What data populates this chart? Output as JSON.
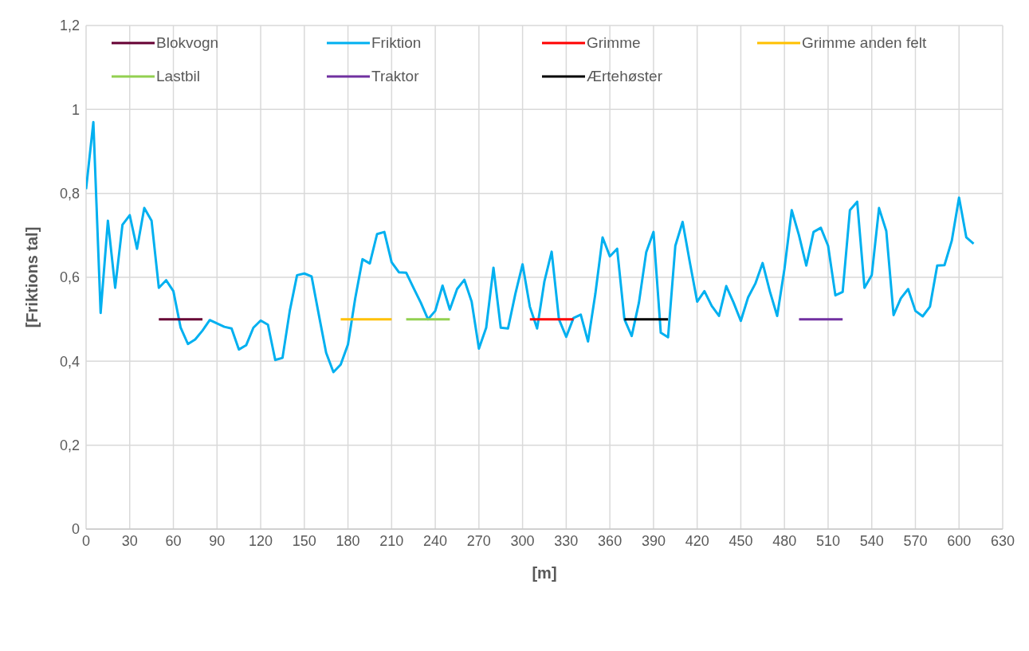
{
  "chart_data": {
    "type": "line",
    "xlabel": "[m]",
    "ylabel": "[Friktions tal]",
    "xlim": [
      0,
      630
    ],
    "xticks": [
      0,
      30,
      60,
      90,
      120,
      150,
      180,
      210,
      240,
      270,
      300,
      330,
      360,
      390,
      420,
      450,
      480,
      510,
      540,
      570,
      600,
      630
    ],
    "ylim": [
      0,
      1.2
    ],
    "yticks": [
      0,
      {
        "value": 0.2,
        "label": "0,2"
      },
      {
        "value": 0.4,
        "label": "0,4"
      },
      {
        "value": 0.6,
        "label": "0,6"
      },
      {
        "value": 0.8,
        "label": "0,8"
      },
      1,
      {
        "value": 1.2,
        "label": "1,2"
      }
    ],
    "grid": true,
    "legend": "top",
    "marker": "none",
    "line_style": "solid",
    "series": [
      {
        "name": "Friktion",
        "color": "#00b0f0",
        "x": [
          0,
          5,
          10,
          15,
          20,
          25,
          30,
          35,
          40,
          45,
          50,
          55,
          60,
          65,
          70,
          75,
          80,
          85,
          90,
          95,
          100,
          105,
          110,
          115,
          120,
          125,
          130,
          135,
          140,
          145,
          150,
          155,
          160,
          165,
          170,
          175,
          180,
          185,
          190,
          195,
          200,
          205,
          210,
          215,
          220,
          225,
          230,
          235,
          240,
          245,
          250,
          255,
          260,
          265,
          270,
          275,
          280,
          285,
          290,
          295,
          300,
          305,
          310,
          315,
          320,
          325,
          330,
          335,
          340,
          345,
          350,
          355,
          360,
          365,
          370,
          375,
          380,
          385,
          390,
          395,
          400,
          405,
          410,
          415,
          420,
          425,
          430,
          435,
          440,
          445,
          450,
          455,
          460,
          465,
          470,
          475,
          480,
          485,
          490,
          495,
          500,
          505,
          510,
          515,
          520,
          525,
          530,
          535,
          540,
          545,
          550,
          555,
          560,
          565,
          570,
          575,
          580,
          585,
          590,
          595,
          600,
          605,
          610
        ],
        "values": [
          0.81,
          0.97,
          0.515,
          0.735,
          0.575,
          0.725,
          0.748,
          0.668,
          0.765,
          0.735,
          0.575,
          0.593,
          0.567,
          0.48,
          0.441,
          0.452,
          0.473,
          0.498,
          0.49,
          0.482,
          0.478,
          0.428,
          0.438,
          0.48,
          0.497,
          0.487,
          0.403,
          0.408,
          0.52,
          0.605,
          0.609,
          0.602,
          0.51,
          0.42,
          0.374,
          0.392,
          0.44,
          0.55,
          0.643,
          0.633,
          0.703,
          0.708,
          0.636,
          0.612,
          0.611,
          0.575,
          0.54,
          0.5,
          0.52,
          0.58,
          0.523,
          0.572,
          0.594,
          0.542,
          0.43,
          0.48,
          0.623,
          0.48,
          0.478,
          0.56,
          0.631,
          0.53,
          0.478,
          0.59,
          0.661,
          0.5,
          0.458,
          0.503,
          0.511,
          0.447,
          0.56,
          0.695,
          0.65,
          0.668,
          0.5,
          0.46,
          0.54,
          0.66,
          0.708,
          0.468,
          0.457,
          0.675,
          0.732,
          0.635,
          0.542,
          0.567,
          0.532,
          0.508,
          0.579,
          0.54,
          0.496,
          0.552,
          0.585,
          0.634,
          0.566,
          0.508,
          0.62,
          0.76,
          0.7,
          0.628,
          0.708,
          0.718,
          0.675,
          0.557,
          0.565,
          0.76,
          0.78,
          0.575,
          0.605,
          0.765,
          0.71,
          0.51,
          0.55,
          0.572,
          0.52,
          0.507,
          0.53,
          0.628,
          0.629,
          0.687,
          0.79,
          0.695,
          0.68
        ]
      },
      {
        "name": "Blokvogn",
        "color": "#660033",
        "x": [
          50,
          80
        ],
        "values": [
          0.5,
          0.5
        ]
      },
      {
        "name": "Lastbil",
        "color": "#92d050",
        "x": [
          220,
          250
        ],
        "values": [
          0.5,
          0.5
        ]
      },
      {
        "name": "Grimme",
        "color": "#ff0000",
        "x": [
          305,
          335
        ],
        "values": [
          0.5,
          0.5
        ]
      },
      {
        "name": "Ærtehøster",
        "color": "#000000",
        "x": [
          370,
          400
        ],
        "values": [
          0.5,
          0.5
        ]
      },
      {
        "name": "Traktor",
        "color": "#7030a0",
        "x": [
          490,
          520
        ],
        "values": [
          0.5,
          0.5
        ]
      },
      {
        "name": "Grimme anden felt",
        "color": "#ffc000",
        "x": [
          175,
          210
        ],
        "values": [
          0.5,
          0.5
        ]
      }
    ]
  }
}
